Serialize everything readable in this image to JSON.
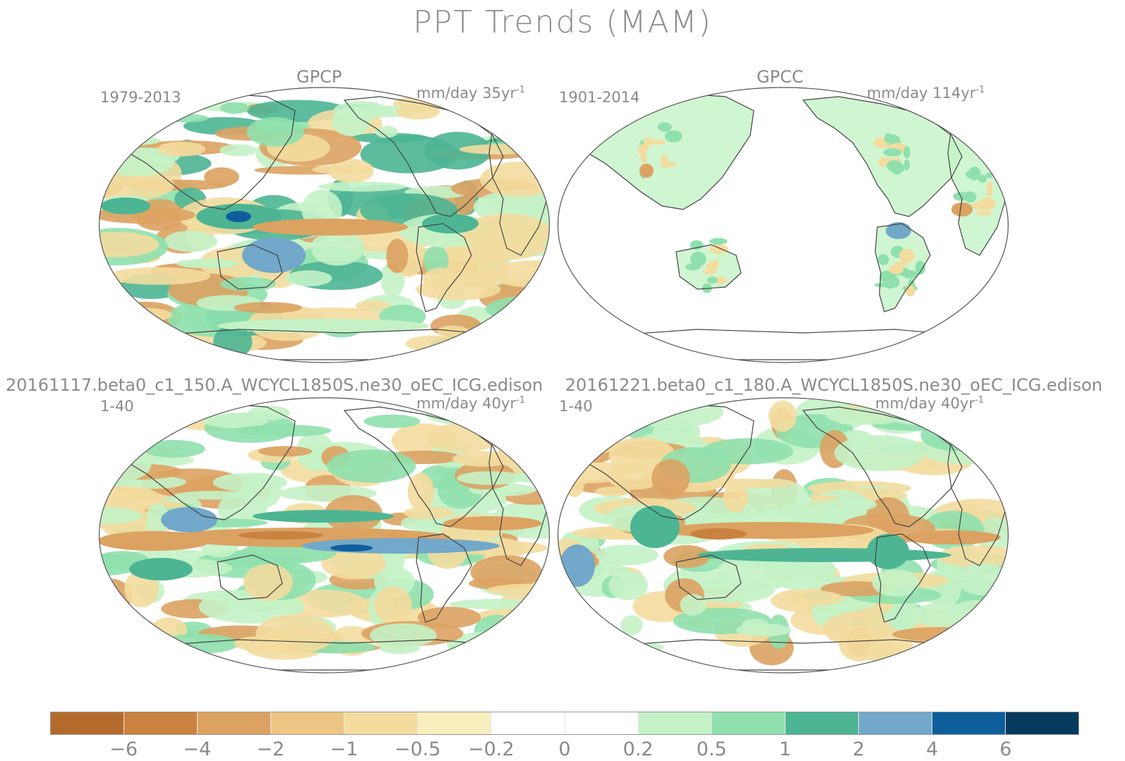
{
  "title": "PPT Trends (MAM)",
  "panels": [
    {
      "title": "GPCP",
      "period": "1979-2013",
      "units": "mm/day 35yr",
      "units_exp": "-1",
      "style": "obs"
    },
    {
      "title": "GPCC",
      "period": "1901-2014",
      "units": "mm/day 114yr",
      "units_exp": "-1",
      "style": "land"
    },
    {
      "title": "20161117.beta0_c1_150.A_WCYCL1850S.ne30_oEC_ICG.edison",
      "period": "1-40",
      "units": "mm/day 40yr",
      "units_exp": "-1",
      "style": "model1"
    },
    {
      "title": "20161221.beta0_c1_180.A_WCYCL1850S.ne30_oEC_ICG.edison",
      "period": "1-40",
      "units": "mm/day 40yr",
      "units_exp": "-1",
      "style": "model2"
    }
  ],
  "colorbar": {
    "labels": [
      "−6",
      "−4",
      "−2",
      "−1",
      "−0.5",
      "−0.2",
      "0",
      "0.2",
      "0.5",
      "1",
      "2",
      "4",
      "6"
    ],
    "colors": [
      "#b46a2a",
      "#c98240",
      "#dca262",
      "#edc684",
      "#f3dc9e",
      "#f8efbe",
      "#ffffff",
      "#ffffff",
      "#c4f2c6",
      "#8fe0ad",
      "#4db593",
      "#72a8ca",
      "#0f5e9c",
      "#063a5e"
    ]
  },
  "map_colors": {
    "dry_strong": "#c98240",
    "dry": "#dca262",
    "dry_light": "#f3dc9e",
    "wet_light": "#c4f2c6",
    "wet": "#8fe0ad",
    "wet_strong": "#4db593",
    "wet_blue": "#72a8ca",
    "wet_dark": "#0f5e9c",
    "coast": "#444444",
    "border": "#555555"
  }
}
